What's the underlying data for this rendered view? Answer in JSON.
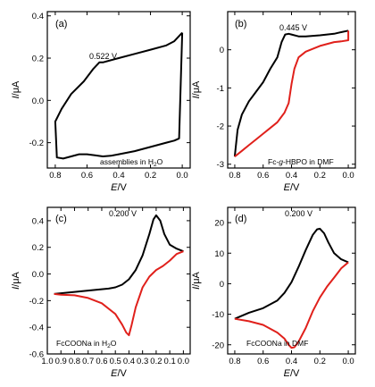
{
  "chart_data": [
    {
      "id": "a",
      "type": "line",
      "panel_label": "(a)",
      "peak_label": "0.522 V",
      "annotation": [
        "assemblies in H",
        "2",
        "O"
      ],
      "xlabel": [
        "E",
        "/V"
      ],
      "ylabel": [
        "I",
        "/μA"
      ],
      "xlim": [
        0.85,
        -0.05
      ],
      "ylim": [
        -0.32,
        0.42
      ],
      "xticks": [
        "0.8",
        "0.6",
        "0.4",
        "0.2",
        "0.0"
      ],
      "xtick_values": [
        0.8,
        0.6,
        0.4,
        0.2,
        0.0
      ],
      "yticks": [
        "-0.2",
        "0.0",
        "0.2",
        "0.4"
      ],
      "ytick_values": [
        -0.2,
        0.0,
        0.2,
        0.4
      ],
      "series": [
        {
          "color": "#000000",
          "x": [
            0.0,
            0.05,
            0.1,
            0.2,
            0.3,
            0.4,
            0.45,
            0.5,
            0.522,
            0.56,
            0.62,
            0.7,
            0.76,
            0.8,
            0.79,
            0.75,
            0.7,
            0.65,
            0.6,
            0.55,
            0.5,
            0.45,
            0.4,
            0.3,
            0.2,
            0.1,
            0.05,
            0.02,
            0.0
          ],
          "y": [
            0.32,
            0.28,
            0.26,
            0.24,
            0.22,
            0.2,
            0.19,
            0.18,
            0.18,
            0.15,
            0.09,
            0.03,
            -0.04,
            -0.1,
            -0.27,
            -0.275,
            -0.265,
            -0.255,
            -0.255,
            -0.26,
            -0.265,
            -0.262,
            -0.255,
            -0.24,
            -0.22,
            -0.2,
            -0.19,
            -0.18,
            0.32
          ]
        }
      ]
    },
    {
      "id": "b",
      "type": "line",
      "panel_label": "(b)",
      "peak_label": "0.445 V",
      "annotation": [
        "Fc-",
        "g",
        "-HBPO in DMF"
      ],
      "xlabel": [
        "E",
        "/V"
      ],
      "ylabel": [
        "I",
        "/μA"
      ],
      "xlim": [
        0.85,
        -0.05
      ],
      "ylim": [
        -3.1,
        1.0
      ],
      "xticks": [
        "0.8",
        "0.6",
        "0.4",
        "0.2",
        "0.0"
      ],
      "xtick_values": [
        0.8,
        0.6,
        0.4,
        0.2,
        0.0
      ],
      "yticks": [
        "-3",
        "-2",
        "-1",
        "0"
      ],
      "ytick_values": [
        -3,
        -2,
        -1,
        0
      ],
      "series": [
        {
          "color": "#000000",
          "x": [
            0.8,
            0.78,
            0.75,
            0.7,
            0.65,
            0.6,
            0.55,
            0.5,
            0.47,
            0.445,
            0.42,
            0.4,
            0.35,
            0.3,
            0.2,
            0.1,
            0.05,
            0.0
          ],
          "y": [
            -2.8,
            -2.1,
            -1.7,
            -1.35,
            -1.1,
            -0.85,
            -0.5,
            -0.2,
            0.2,
            0.4,
            0.42,
            0.4,
            0.35,
            0.35,
            0.38,
            0.42,
            0.46,
            0.5
          ]
        },
        {
          "color": "#e0201b",
          "x": [
            0.0,
            0.0,
            0.05,
            0.1,
            0.2,
            0.3,
            0.35,
            0.38,
            0.4,
            0.42,
            0.45,
            0.48,
            0.5,
            0.55,
            0.6,
            0.65,
            0.7,
            0.75,
            0.8
          ],
          "y": [
            0.5,
            0.25,
            0.22,
            0.2,
            0.1,
            -0.05,
            -0.2,
            -0.5,
            -0.9,
            -1.4,
            -1.65,
            -1.8,
            -1.9,
            -2.05,
            -2.2,
            -2.35,
            -2.5,
            -2.65,
            -2.8
          ]
        }
      ]
    },
    {
      "id": "c",
      "type": "line",
      "panel_label": "(c)",
      "peak_label": "0.200 V",
      "annotation": [
        "FcCOONa in H",
        "2",
        "O"
      ],
      "xlabel": [
        "E",
        "/V"
      ],
      "ylabel": [
        "I",
        "/μA"
      ],
      "xlim": [
        1.0,
        -0.05
      ],
      "ylim": [
        -0.6,
        0.5
      ],
      "xticks": [
        "1.0",
        "0.9",
        "0.8",
        "0.7",
        "0.6",
        "0.5",
        "0.4",
        "0.3",
        "0.2",
        "0.1",
        "0.0"
      ],
      "xtick_values": [
        1.0,
        0.9,
        0.8,
        0.7,
        0.6,
        0.5,
        0.4,
        0.3,
        0.2,
        0.1,
        0.0
      ],
      "yticks": [
        "-0.6",
        "-0.4",
        "-0.2",
        "0.0",
        "0.2",
        "0.4"
      ],
      "ytick_values": [
        -0.6,
        -0.4,
        -0.2,
        0.0,
        0.2,
        0.4
      ],
      "series": [
        {
          "color": "#000000",
          "x": [
            0.95,
            0.85,
            0.75,
            0.65,
            0.55,
            0.5,
            0.45,
            0.4,
            0.35,
            0.3,
            0.25,
            0.22,
            0.2,
            0.17,
            0.14,
            0.1,
            0.05,
            0.0
          ],
          "y": [
            -0.15,
            -0.14,
            -0.13,
            -0.12,
            -0.11,
            -0.1,
            -0.08,
            -0.04,
            0.03,
            0.14,
            0.3,
            0.41,
            0.44,
            0.4,
            0.3,
            0.22,
            0.19,
            0.17
          ]
        },
        {
          "color": "#e0201b",
          "x": [
            0.0,
            0.05,
            0.1,
            0.15,
            0.2,
            0.25,
            0.3,
            0.35,
            0.38,
            0.4,
            0.42,
            0.45,
            0.5,
            0.6,
            0.7,
            0.8,
            0.9,
            0.95
          ],
          "y": [
            0.17,
            0.15,
            0.1,
            0.06,
            0.03,
            -0.02,
            -0.1,
            -0.25,
            -0.38,
            -0.46,
            -0.44,
            -0.38,
            -0.3,
            -0.22,
            -0.18,
            -0.16,
            -0.155,
            -0.15
          ]
        }
      ]
    },
    {
      "id": "d",
      "type": "line",
      "panel_label": "(d)",
      "peak_label": "0.200 V",
      "annotation": [
        "FcCOONa in DMF"
      ],
      "xlabel": [
        "E",
        "/V"
      ],
      "ylabel": [
        "I",
        "/μA"
      ],
      "xlim": [
        0.85,
        -0.05
      ],
      "ylim": [
        -23,
        25
      ],
      "xticks": [
        "0.8",
        "0.6",
        "0.4",
        "0.2",
        "0.0"
      ],
      "xtick_values": [
        0.8,
        0.6,
        0.4,
        0.2,
        0.0
      ],
      "yticks": [
        "-20",
        "-10",
        "0",
        "10",
        "20"
      ],
      "ytick_values": [
        -20,
        -10,
        0,
        10,
        20
      ],
      "series": [
        {
          "color": "#000000",
          "x": [
            0.8,
            0.7,
            0.6,
            0.5,
            0.45,
            0.4,
            0.35,
            0.3,
            0.25,
            0.22,
            0.2,
            0.17,
            0.14,
            0.1,
            0.05,
            0.0
          ],
          "y": [
            -11.5,
            -9.5,
            -8.0,
            -5.5,
            -3.0,
            0.5,
            5.5,
            11.0,
            16.0,
            17.8,
            18.0,
            16.5,
            13.5,
            10.0,
            8.0,
            7.0
          ]
        },
        {
          "color": "#e0201b",
          "x": [
            0.0,
            0.05,
            0.1,
            0.15,
            0.2,
            0.25,
            0.3,
            0.35,
            0.38,
            0.4,
            0.42,
            0.45,
            0.5,
            0.6,
            0.7,
            0.8
          ],
          "y": [
            7.0,
            5.0,
            2.0,
            -1.0,
            -4.5,
            -9.0,
            -14.5,
            -19.0,
            -20.8,
            -21.0,
            -20.0,
            -18.0,
            -16.0,
            -13.5,
            -12.3,
            -11.5
          ]
        }
      ]
    }
  ]
}
